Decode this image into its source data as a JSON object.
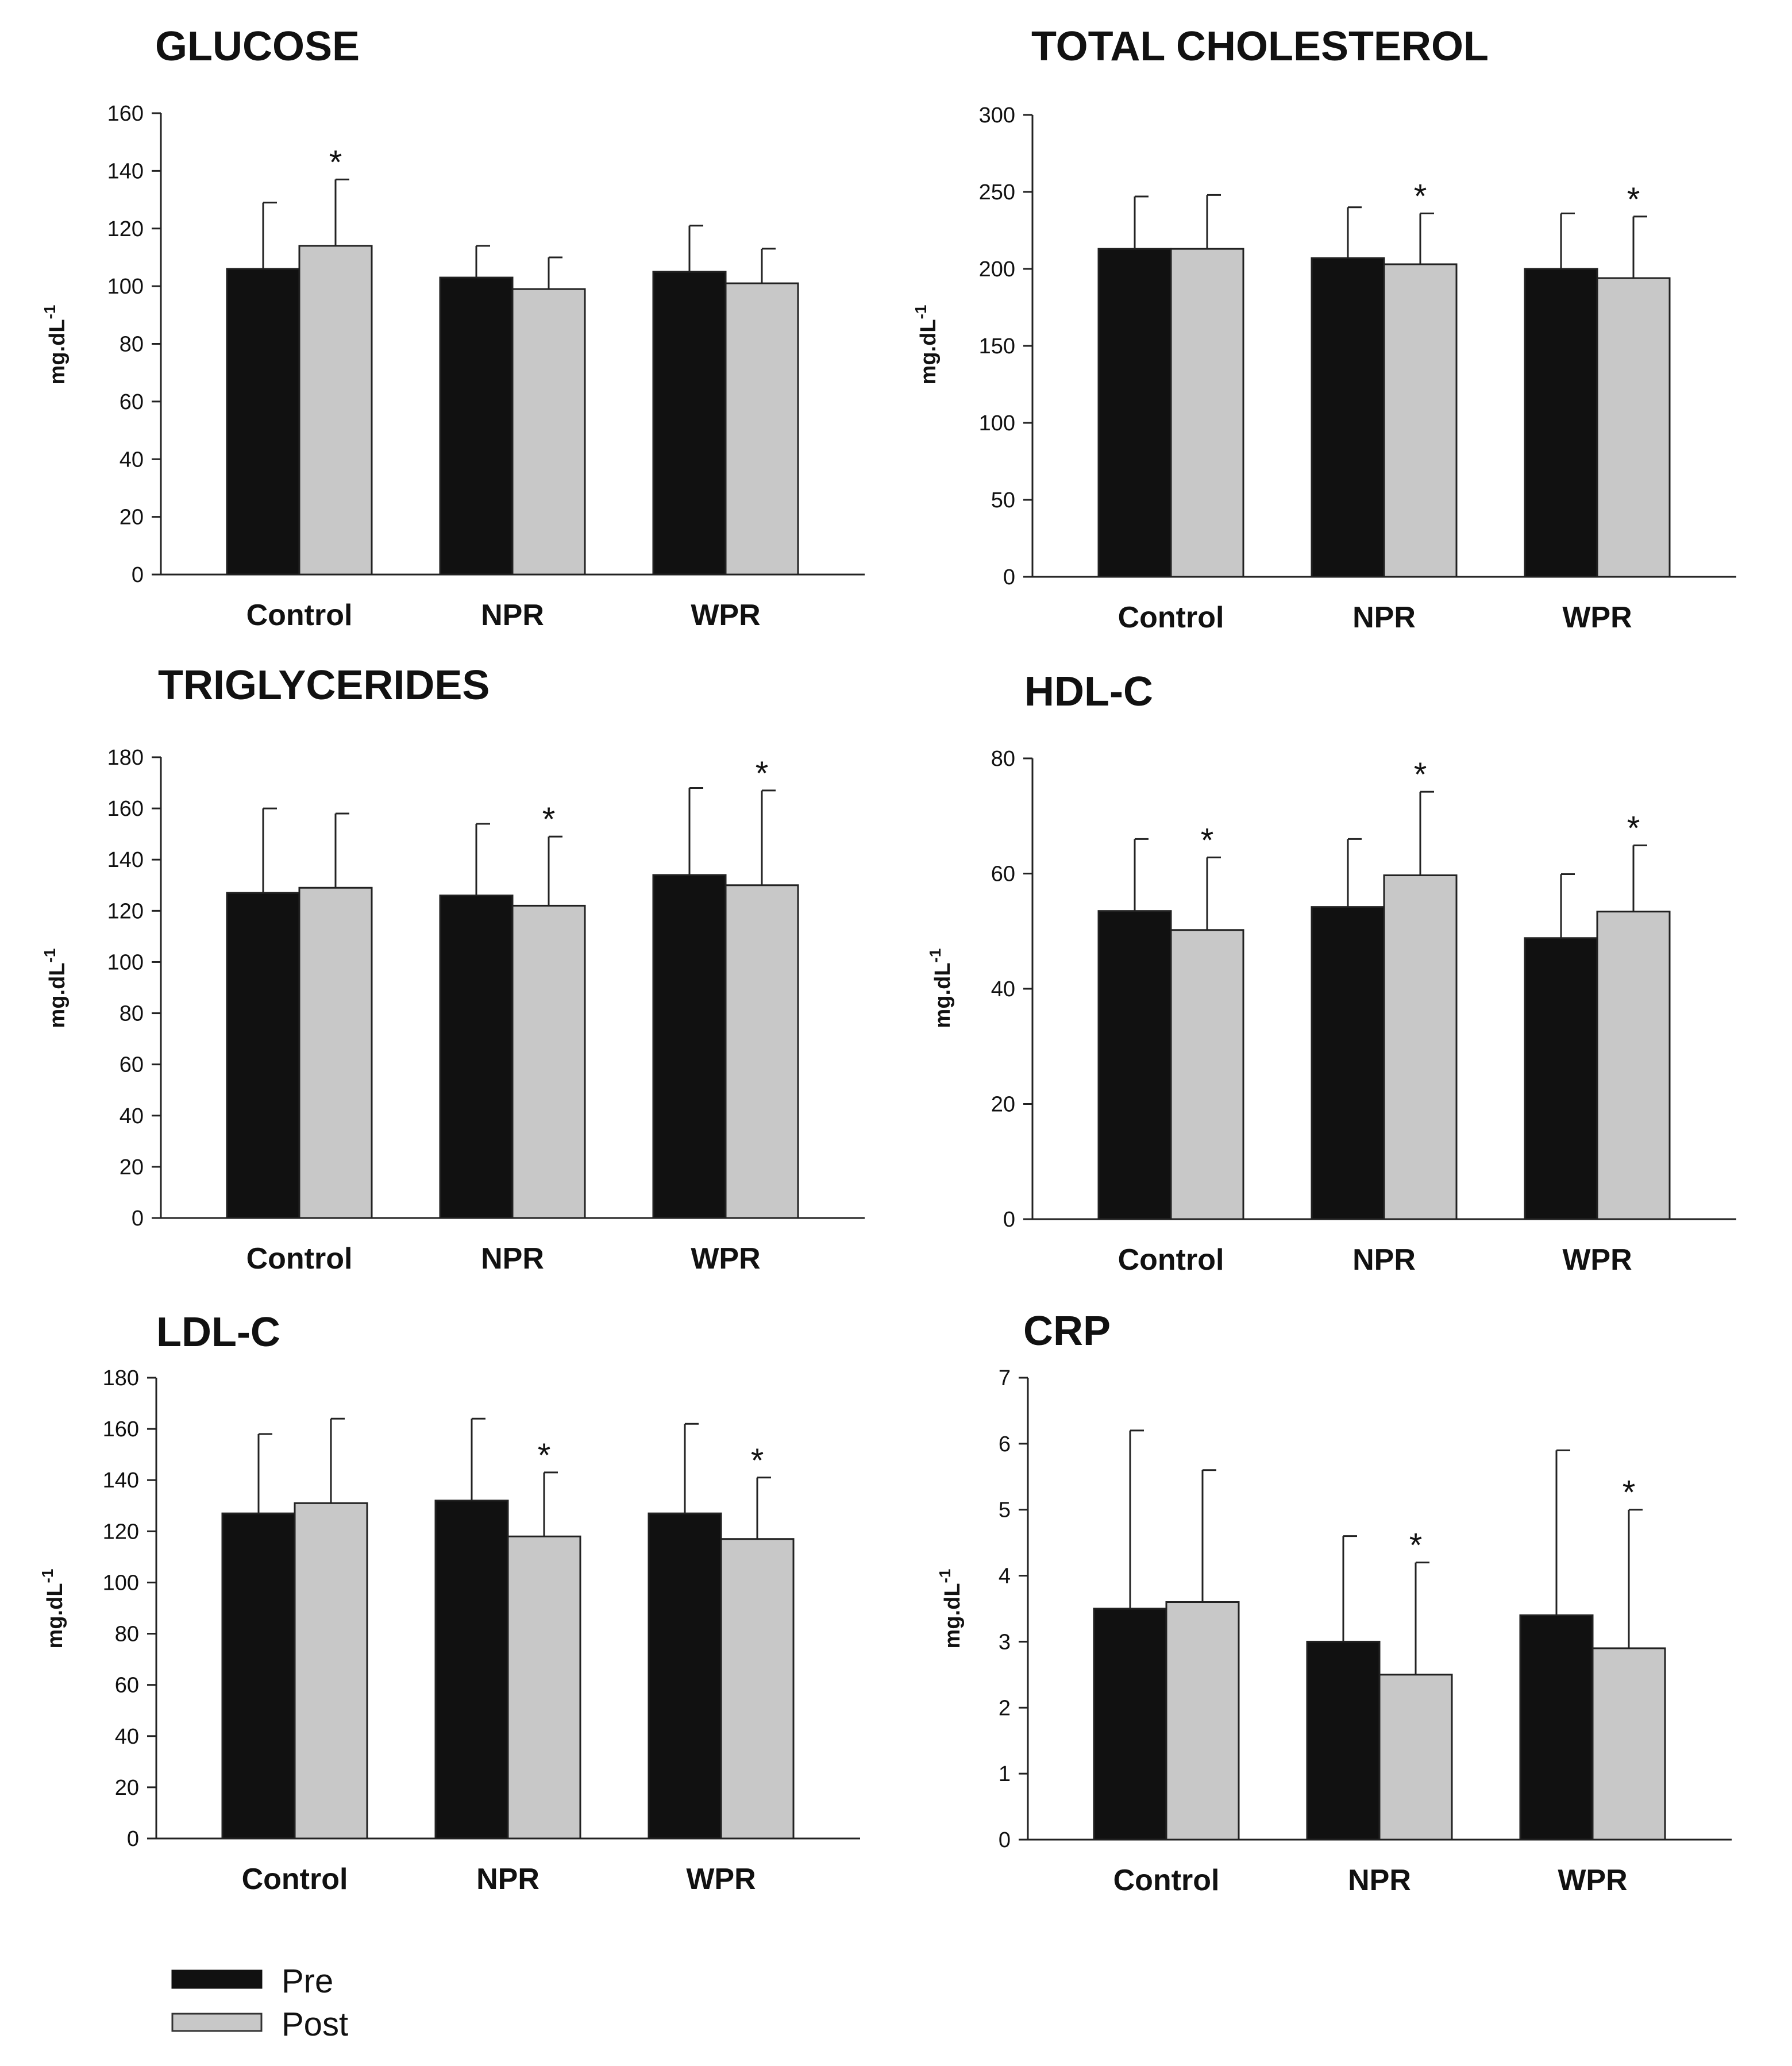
{
  "legend": {
    "items": [
      {
        "label": "Pre",
        "color": "#111111"
      },
      {
        "label": "Post",
        "color": "#c8c8c8"
      }
    ]
  },
  "chart_data": [
    {
      "type": "bar",
      "title": "GLUCOSE",
      "ylabel": "mg.dL",
      "ylabel_sup": "-1",
      "ylim": [
        0,
        160
      ],
      "yticks": [
        0,
        20,
        40,
        60,
        80,
        100,
        120,
        140,
        160
      ],
      "categories": [
        "Control",
        "NPR",
        "WPR"
      ],
      "series": [
        {
          "name": "Pre",
          "values": [
            106,
            103,
            105
          ],
          "errors": [
            23,
            11,
            16
          ],
          "stars": [
            "",
            "",
            ""
          ]
        },
        {
          "name": "Post",
          "values": [
            114,
            99,
            101
          ],
          "errors": [
            23,
            11,
            12
          ],
          "stars": [
            "*",
            "",
            ""
          ]
        }
      ]
    },
    {
      "type": "bar",
      "title": "TOTAL CHOLESTEROL",
      "ylabel": "mg.dL",
      "ylabel_sup": "-1",
      "ylim": [
        0,
        300
      ],
      "yticks": [
        0,
        50,
        100,
        150,
        200,
        250,
        300
      ],
      "categories": [
        "Control",
        "NPR",
        "WPR"
      ],
      "series": [
        {
          "name": "Pre",
          "values": [
            213,
            207,
            200
          ],
          "errors": [
            34,
            33,
            36
          ],
          "stars": [
            "",
            "",
            ""
          ]
        },
        {
          "name": "Post",
          "values": [
            213,
            203,
            194
          ],
          "errors": [
            35,
            33,
            40
          ],
          "stars": [
            "",
            "*",
            "*"
          ]
        }
      ]
    },
    {
      "type": "bar",
      "title": "TRIGLYCERIDES",
      "ylabel": "mg.dL",
      "ylabel_sup": "-1",
      "ylim": [
        0,
        180
      ],
      "yticks": [
        0,
        20,
        40,
        60,
        80,
        100,
        120,
        140,
        160,
        180
      ],
      "categories": [
        "Control",
        "NPR",
        "WPR"
      ],
      "series": [
        {
          "name": "Pre",
          "values": [
            127,
            126,
            134
          ],
          "errors": [
            33,
            28,
            34
          ],
          "stars": [
            "",
            "",
            ""
          ]
        },
        {
          "name": "Post",
          "values": [
            129,
            122,
            130
          ],
          "errors": [
            29,
            27,
            37
          ],
          "stars": [
            "",
            "*",
            "*"
          ]
        }
      ]
    },
    {
      "type": "bar",
      "title": "HDL-C",
      "ylabel": "mg.dL",
      "ylabel_sup": "-1",
      "ylim": [
        0,
        80
      ],
      "yticks": [
        0,
        20,
        40,
        60,
        80
      ],
      "categories": [
        "Control",
        "NPR",
        "WPR"
      ],
      "series": [
        {
          "name": "Pre",
          "values": [
            53.5,
            54.2,
            48.8
          ],
          "errors": [
            12.5,
            11.8,
            11.1
          ],
          "stars": [
            "",
            "",
            ""
          ]
        },
        {
          "name": "Post",
          "values": [
            50.2,
            59.7,
            53.4
          ],
          "errors": [
            12.6,
            14.5,
            11.5
          ],
          "stars": [
            "*",
            "*",
            "*"
          ]
        }
      ]
    },
    {
      "type": "bar",
      "title": "LDL-C",
      "ylabel": "mg.dL",
      "ylabel_sup": "-1",
      "ylim": [
        0,
        180
      ],
      "yticks": [
        0,
        20,
        40,
        60,
        80,
        100,
        120,
        140,
        160,
        180
      ],
      "categories": [
        "Control",
        "NPR",
        "WPR"
      ],
      "series": [
        {
          "name": "Pre",
          "values": [
            127,
            132,
            127
          ],
          "errors": [
            31,
            32,
            35
          ],
          "stars": [
            "",
            "",
            ""
          ]
        },
        {
          "name": "Post",
          "values": [
            131,
            118,
            117
          ],
          "errors": [
            33,
            25,
            24
          ],
          "stars": [
            "",
            "*",
            "*"
          ]
        }
      ]
    },
    {
      "type": "bar",
      "title": "CRP",
      "ylabel": "mg.dL",
      "ylabel_sup": "-1",
      "ylim": [
        0,
        7
      ],
      "yticks": [
        0,
        1,
        2,
        3,
        4,
        5,
        6,
        7
      ],
      "categories": [
        "Control",
        "NPR",
        "WPR"
      ],
      "series": [
        {
          "name": "Pre",
          "values": [
            3.5,
            3.0,
            3.4
          ],
          "errors": [
            2.7,
            1.6,
            2.5
          ],
          "stars": [
            "",
            "",
            ""
          ]
        },
        {
          "name": "Post",
          "values": [
            3.6,
            2.5,
            2.9
          ],
          "errors": [
            2.0,
            1.7,
            2.1
          ],
          "stars": [
            "",
            "*",
            "*"
          ]
        }
      ]
    }
  ]
}
